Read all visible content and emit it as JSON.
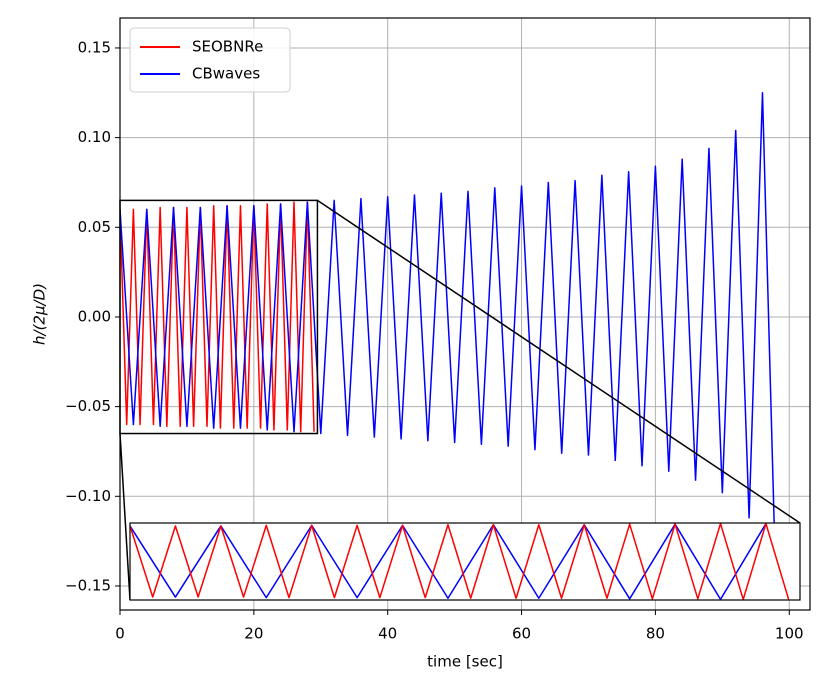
{
  "chart_data": {
    "type": "line",
    "x_label": "time [sec]",
    "y_label": "h/(2μ/D)",
    "xlim": [
      0,
      103.1
    ],
    "ylim": [
      -0.1634,
      0.1667
    ],
    "xticks": [
      0,
      20,
      40,
      60,
      80,
      100
    ],
    "yticks": [
      {
        "value": -0.15,
        "label": "−0.15"
      },
      {
        "value": -0.1,
        "label": "−0.10"
      },
      {
        "value": -0.05,
        "label": "−0.05"
      },
      {
        "value": 0,
        "label": "0.00"
      },
      {
        "value": 0.05,
        "label": "0.05"
      },
      {
        "value": 0.1,
        "label": "0.10"
      },
      0.15
    ],
    "grid": true,
    "legend": "upper left",
    "series": [
      {
        "name": "SEOBNRe",
        "color": "#ff0000",
        "x": [
          0,
          1,
          2,
          3,
          4,
          5,
          6,
          7,
          8,
          9,
          10,
          11,
          12,
          13,
          14,
          15,
          16,
          17,
          18,
          19,
          20,
          21,
          22,
          23,
          24,
          25,
          26,
          27,
          28,
          29
        ],
        "values": [
          0.06,
          -0.06,
          0.06,
          -0.06,
          0.06,
          -0.06,
          0.061,
          -0.061,
          0.061,
          -0.061,
          0.061,
          -0.061,
          0.061,
          -0.061,
          0.062,
          -0.062,
          0.062,
          -0.062,
          0.062,
          -0.062,
          0.062,
          -0.062,
          0.063,
          -0.063,
          0.063,
          -0.063,
          0.064,
          -0.064,
          0.064,
          -0.064
        ]
      },
      {
        "name": "CBwaves",
        "color": "#0000ff",
        "x": [
          0,
          2,
          4,
          6,
          8,
          10,
          12,
          14,
          16,
          18,
          20,
          22,
          24,
          26,
          28,
          30,
          32,
          34,
          36,
          38,
          40,
          42,
          44,
          46,
          48,
          50,
          52,
          54,
          56,
          58,
          60,
          62,
          64,
          66,
          68,
          70,
          72,
          74,
          76,
          78,
          80,
          82,
          84,
          86,
          88,
          90,
          92,
          94,
          96,
          98
        ],
        "values": [
          0.06,
          -0.06,
          0.06,
          -0.061,
          0.061,
          -0.061,
          0.061,
          -0.062,
          0.062,
          -0.062,
          0.062,
          -0.063,
          0.063,
          -0.064,
          0.064,
          -0.065,
          0.065,
          -0.066,
          0.066,
          -0.067,
          0.067,
          -0.068,
          0.068,
          -0.069,
          0.069,
          -0.07,
          0.07,
          -0.071,
          0.072,
          -0.072,
          0.073,
          -0.074,
          0.075,
          -0.076,
          0.076,
          -0.077,
          0.079,
          -0.08,
          0.081,
          -0.083,
          0.084,
          -0.086,
          0.088,
          -0.091,
          0.094,
          -0.098,
          0.104,
          -0.112,
          0.125,
          -0.15
        ]
      }
    ],
    "inset": {
      "xlim": [
        0,
        29.5
      ],
      "ylim": [
        -0.065,
        0.065
      ]
    }
  }
}
